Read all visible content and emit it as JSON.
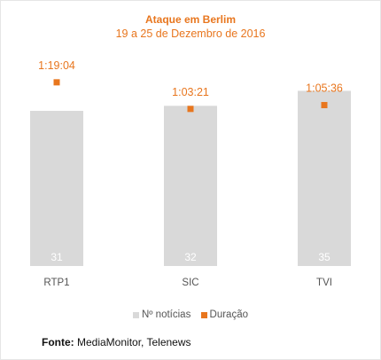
{
  "chart_data": {
    "type": "bar",
    "title": "Ataque em Berlim",
    "subtitle": "19 a 25 de Dezembro de 2016",
    "categories": [
      "RTP1",
      "SIC",
      "TVI"
    ],
    "series": [
      {
        "name": "Nº notícias",
        "type": "bar",
        "values": [
          31,
          32,
          35
        ],
        "color": "#d9d9d9"
      },
      {
        "name": "Duração",
        "type": "marker",
        "values": [
          "1:19:04",
          "1:03:21",
          "1:05:36"
        ],
        "values_seconds": [
          4744,
          3801,
          3936
        ],
        "color": "#e8761e"
      }
    ],
    "ylim_bar": [
      0,
      40
    ],
    "legend_position": "bottom",
    "grid": false
  },
  "source": {
    "label": "Fonte:",
    "text": "MediaMonitor, Telenews"
  },
  "colors": {
    "accent": "#e8761e",
    "bar": "#d9d9d9",
    "bar_label": "#ffffff",
    "axis_text": "#555555"
  }
}
